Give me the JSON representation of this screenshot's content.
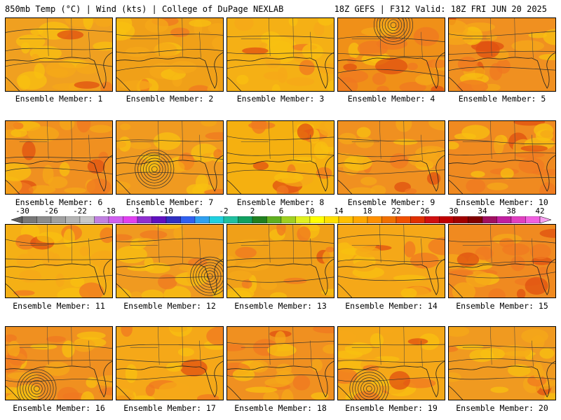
{
  "header": {
    "left_title": "850mb Temp (°C) | Wind (kts) | College of DuPage NEXLAB",
    "right_title": "18Z GEFS | F312 Valid: 18Z FRI JUN 20 2025"
  },
  "panels": [
    {
      "label": "Ensemble Member: 1",
      "base": "#f0a020",
      "hot": 0.25,
      "low": null
    },
    {
      "label": "Ensemble Member: 2",
      "base": "#f0a018",
      "hot": 0.15,
      "low": null
    },
    {
      "label": "Ensemble Member: 3",
      "base": "#f5b015",
      "hot": 0.1,
      "low": null
    },
    {
      "label": "Ensemble Member: 4",
      "base": "#f09018",
      "hot": 0.6,
      "low": "top"
    },
    {
      "label": "Ensemble Member: 5",
      "base": "#f09020",
      "hot": 0.4,
      "low": null
    },
    {
      "label": "Ensemble Member: 6",
      "base": "#f09020",
      "hot": 0.4,
      "low": null
    },
    {
      "label": "Ensemble Member: 7",
      "base": "#f09a20",
      "hot": 0.3,
      "low": "center"
    },
    {
      "label": "Ensemble Member: 8",
      "base": "#f5b010",
      "hot": 0.5,
      "low": null
    },
    {
      "label": "Ensemble Member: 9",
      "base": "#f09020",
      "hot": 0.35,
      "low": null
    },
    {
      "label": "Ensemble Member: 10",
      "base": "#f08a20",
      "hot": 0.45,
      "low": null
    },
    {
      "label": "Ensemble Member: 11",
      "base": "#f5b015",
      "hot": 0.15,
      "low": null
    },
    {
      "label": "Ensemble Member: 12",
      "base": "#f09a20",
      "hot": 0.3,
      "low": "right"
    },
    {
      "label": "Ensemble Member: 13",
      "base": "#f0a018",
      "hot": 0.25,
      "low": null
    },
    {
      "label": "Ensemble Member: 14",
      "base": "#f5a818",
      "hot": 0.2,
      "low": null
    },
    {
      "label": "Ensemble Member: 15",
      "base": "#f08a20",
      "hot": 0.5,
      "low": null
    },
    {
      "label": "Ensemble Member: 16",
      "base": "#f09020",
      "hot": 0.45,
      "low": "bottom"
    },
    {
      "label": "Ensemble Member: 17",
      "base": "#f5a818",
      "hot": 0.2,
      "low": null
    },
    {
      "label": "Ensemble Member: 18",
      "base": "#f09020",
      "hot": 0.45,
      "low": null
    },
    {
      "label": "Ensemble Member: 19",
      "base": "#f5a818",
      "hot": 0.25,
      "low": "bottom"
    },
    {
      "label": "Ensemble Member: 20",
      "base": "#f09a20",
      "hot": 0.3,
      "low": null
    }
  ],
  "colorbar": {
    "unit": "°C",
    "min": -30,
    "max": 42,
    "step": 2,
    "tick_labels": [
      "-30",
      "-26",
      "-22",
      "-18",
      "-14",
      "-10",
      "-6",
      "-2",
      "2",
      "6",
      "10",
      "14",
      "18",
      "22",
      "26",
      "30",
      "34",
      "38",
      "42"
    ],
    "colors": [
      "#606060",
      "#787878",
      "#8c8c8c",
      "#a0a0a0",
      "#b4b4b4",
      "#c8c8c8",
      "#c080e0",
      "#d060f0",
      "#e040f0",
      "#9030d0",
      "#6010c0",
      "#3030c0",
      "#3060f0",
      "#30a0f0",
      "#20d0e0",
      "#20c0a0",
      "#10a060",
      "#208020",
      "#60b020",
      "#a0d020",
      "#e0f020",
      "#ffff00",
      "#ffe000",
      "#ffc000",
      "#ffa800",
      "#ff9000",
      "#f07000",
      "#f05000",
      "#e03000",
      "#d01010",
      "#c00000",
      "#a00000",
      "#800000",
      "#a01060",
      "#c020a0",
      "#e040c0",
      "#f060e0",
      "#f8a0f0"
    ]
  }
}
